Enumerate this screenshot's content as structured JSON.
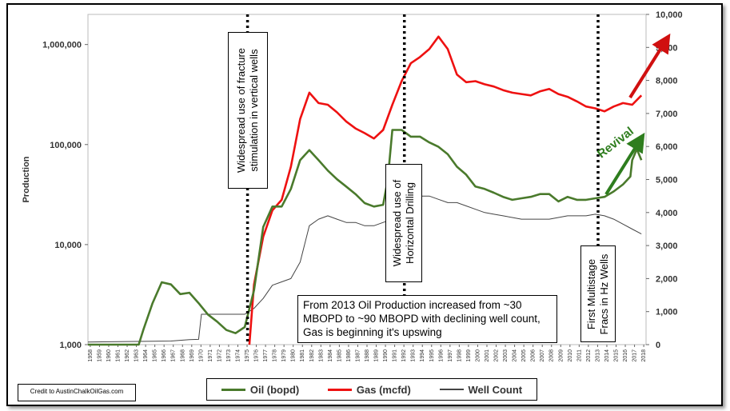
{
  "chart_data": {
    "type": "line",
    "title": "",
    "xlabel": "",
    "ylabel": "Production",
    "y_scale": "log",
    "ylim": [
      1000,
      2000000
    ],
    "y2lim": [
      0,
      10000
    ],
    "xlim": [
      1958,
      2018.5
    ],
    "y_ticks": [
      1000,
      10000,
      100000,
      1000000
    ],
    "y_tick_labels": [
      "1,000",
      "10,000",
      "100,000",
      "1,000,000"
    ],
    "y2_ticks": [
      0,
      1000,
      2000,
      3000,
      4000,
      5000,
      6000,
      7000,
      8000,
      9000,
      10000
    ],
    "y2_tick_labels": [
      "0",
      "1,000",
      "2,000",
      "3,000",
      "4,000",
      "5,000",
      "6,000",
      "7,000",
      "8,000",
      "9,000",
      "10,000"
    ],
    "x_tick_labels": [
      "1958",
      "1959",
      "1960",
      "1961",
      "1962",
      "1963",
      "1964",
      "1965",
      "1966",
      "1967",
      "1968",
      "1969",
      "1970",
      "1971",
      "1972",
      "1973",
      "1974",
      "1975",
      "1976",
      "1977",
      "1978",
      "1979",
      "1980",
      "1981",
      "1982",
      "1983",
      "1984",
      "1985",
      "1986",
      "1987",
      "1988",
      "1989",
      "1990",
      "1991",
      "1992",
      "1993",
      "1994",
      "1995",
      "1996",
      "1997",
      "1998",
      "1999",
      "2000",
      "2001",
      "2002",
      "2003",
      "2004",
      "2005",
      "2006",
      "2007",
      "2008",
      "2009",
      "2010",
      "2011",
      "2012",
      "2013",
      "2014",
      "2015",
      "2016",
      "2017",
      "2018"
    ],
    "series": [
      {
        "name": "Oil (bopd)",
        "color": "#4a7a2c",
        "axis": "left",
        "x": [
          1958,
          1963.5,
          1964,
          1965,
          1966,
          1967,
          1968,
          1969,
          1970,
          1971,
          1972,
          1973,
          1974,
          1975,
          1976,
          1977,
          1978,
          1979,
          1980,
          1981,
          1982,
          1983,
          1984,
          1985,
          1986,
          1987,
          1988,
          1989,
          1990,
          1990.5,
          1991,
          1992,
          1993,
          1994,
          1995,
          1996,
          1997,
          1998,
          1999,
          2000,
          2001,
          2002,
          2003,
          2004,
          2005,
          2006,
          2007,
          2008,
          2009,
          2010,
          2011,
          2012,
          2013,
          2014,
          2015,
          2016,
          2016.8,
          2017,
          2017.5,
          2018
        ],
        "y": [
          1000,
          1000,
          1400,
          2600,
          4200,
          4000,
          3200,
          3300,
          2600,
          2000,
          1700,
          1400,
          1300,
          1500,
          3500,
          15000,
          24000,
          24000,
          36000,
          70000,
          88000,
          70000,
          55000,
          45000,
          38000,
          32000,
          26000,
          24000,
          25000,
          45000,
          140000,
          140000,
          120000,
          120000,
          105000,
          95000,
          80000,
          60000,
          50000,
          38000,
          36000,
          33000,
          30000,
          28000,
          29000,
          30000,
          32000,
          32000,
          27000,
          30000,
          28000,
          28000,
          29000,
          30000,
          34000,
          40000,
          48000,
          70000,
          90000,
          70000
        ]
      },
      {
        "name": "Gas (mcfd)",
        "color": "#ee1111",
        "axis": "left",
        "x": [
          1975.5,
          1976,
          1977,
          1978,
          1979,
          1980,
          1981,
          1982,
          1983,
          1984,
          1985,
          1986,
          1987,
          1988,
          1989,
          1990,
          1991,
          1992,
          1993,
          1994,
          1995,
          1996,
          1997,
          1998,
          1999,
          2000,
          2001,
          2002,
          2003,
          2004,
          2005,
          2006,
          2007,
          2008,
          2009,
          2010,
          2011,
          2012,
          2013,
          2014,
          2015,
          2016,
          2017,
          2018
        ],
        "y": [
          1000,
          4000,
          12000,
          22000,
          28000,
          60000,
          180000,
          330000,
          260000,
          250000,
          210000,
          170000,
          145000,
          130000,
          115000,
          140000,
          250000,
          430000,
          650000,
          750000,
          900000,
          1200000,
          900000,
          500000,
          420000,
          430000,
          400000,
          380000,
          350000,
          330000,
          320000,
          310000,
          340000,
          360000,
          320000,
          300000,
          270000,
          240000,
          230000,
          215000,
          240000,
          260000,
          250000,
          310000
        ]
      },
      {
        "name": "Well Count",
        "color": "#444444",
        "axis": "right",
        "x": [
          1958,
          1967,
          1969,
          1970,
          1970.3,
          1975,
          1976,
          1977,
          1978,
          1979,
          1980,
          1981,
          1982,
          1983,
          1984,
          1985,
          1986,
          1987,
          1988,
          1989,
          1990,
          1991,
          1992,
          1993,
          1994,
          1995,
          1996,
          1997,
          1998,
          1999,
          2000,
          2001,
          2002,
          2003,
          2004,
          2005,
          2006,
          2007,
          2008,
          2009,
          2010,
          2011,
          2012,
          2013,
          2014,
          2015,
          2016,
          2017,
          2018
        ],
        "y": [
          80,
          110,
          150,
          160,
          920,
          920,
          1100,
          1400,
          1800,
          1900,
          2000,
          2500,
          3600,
          3800,
          3900,
          3800,
          3700,
          3700,
          3600,
          3600,
          3700,
          3800,
          4300,
          4300,
          4500,
          4500,
          4400,
          4300,
          4300,
          4200,
          4100,
          4000,
          3950,
          3900,
          3850,
          3800,
          3800,
          3800,
          3800,
          3850,
          3900,
          3900,
          3900,
          3950,
          3900,
          3800,
          3650,
          3500,
          3350
        ]
      }
    ],
    "vlines": [
      1975,
      1992,
      2013
    ],
    "annotations": {
      "fracture": "Widespread use of fracture stimulation in vertical wells",
      "horizontal": "Widespread use of Horizontal Drilling",
      "multistage": "First Multistage Fracs in Hz Wells",
      "revival": "Revival",
      "note": "From 2013 Oil Production increased from ~30 MBOPD  to ~90 MBOPD with declining well count, Gas is beginning it's upswing"
    },
    "credit": "Credit to AustinChalkOilGas.com",
    "legend_position": "bottom-center"
  }
}
